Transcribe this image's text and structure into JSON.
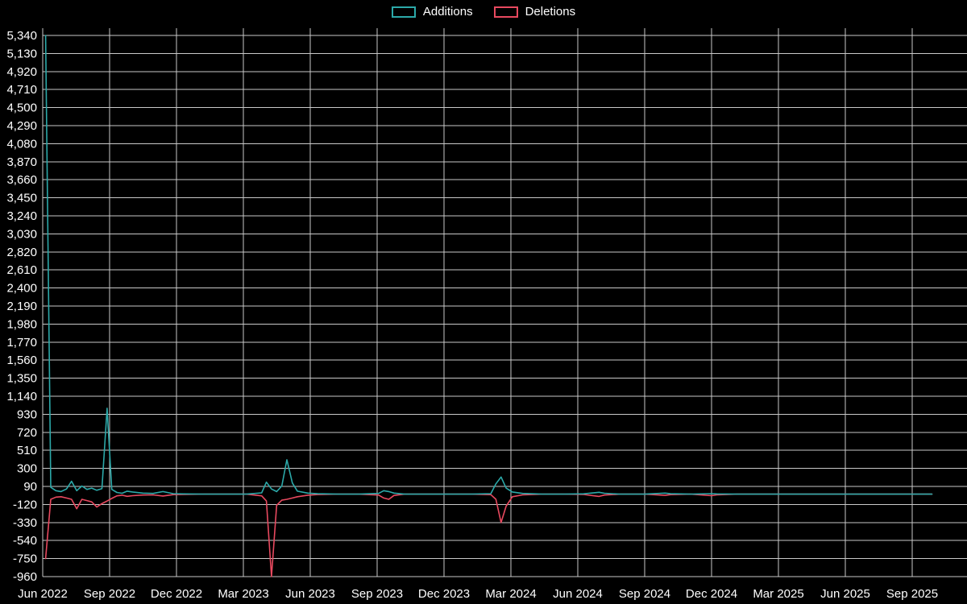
{
  "colors": {
    "background": "#000000",
    "grid": "#c9c9c9",
    "text": "#ffffff",
    "additions": "#2ca9a9",
    "deletions": "#e8495f"
  },
  "legend": {
    "items": [
      {
        "label": "Additions",
        "key": "additions"
      },
      {
        "label": "Deletions",
        "key": "deletions"
      }
    ]
  },
  "chart_data": {
    "type": "line",
    "title": "",
    "xlabel": "",
    "ylabel": "",
    "legend_position": "top-center",
    "grid": true,
    "ylim": [
      -960,
      5340
    ],
    "x_range": [
      "2022-06-01",
      "2025-11-01"
    ],
    "yticks": {
      "values": [
        5340,
        5130,
        4920,
        4710,
        4500,
        4290,
        4080,
        3870,
        3660,
        3450,
        3240,
        3030,
        2820,
        2610,
        2400,
        2190,
        1980,
        1770,
        1560,
        1350,
        1140,
        930,
        720,
        510,
        300,
        90,
        -120,
        -330,
        -540,
        -750,
        -960
      ],
      "labels": [
        "5,340",
        "5,130",
        "4,920",
        "4,710",
        "4,500",
        "4,290",
        "4,080",
        "3,870",
        "3,660",
        "3,450",
        "3,240",
        "3,030",
        "2,820",
        "2,610",
        "2,400",
        "2,190",
        "1,980",
        "1,770",
        "1,560",
        "1,350",
        "1,140",
        "930",
        "720",
        "510",
        "300",
        "90",
        "-120",
        "-330",
        "-540",
        "-750",
        "-960"
      ]
    },
    "xticks": {
      "labels": [
        "Jun 2022",
        "Sep 2022",
        "Dec 2022",
        "Mar 2023",
        "Jun 2023",
        "Sep 2023",
        "Dec 2023",
        "Mar 2024",
        "Jun 2024",
        "Sep 2024",
        "Dec 2024",
        "Mar 2025",
        "Jun 2025",
        "Sep 2025"
      ],
      "months_offset": [
        0,
        3,
        6,
        9,
        12,
        15,
        18,
        21,
        24,
        27,
        30,
        33,
        36,
        39
      ]
    },
    "series_names": [
      "Additions",
      "Deletions"
    ],
    "points": [
      [
        "2022-06-05",
        5340,
        -750
      ],
      [
        "2022-06-12",
        80,
        -60
      ],
      [
        "2022-06-19",
        40,
        -35
      ],
      [
        "2022-06-26",
        30,
        -30
      ],
      [
        "2022-07-03",
        60,
        -45
      ],
      [
        "2022-07-10",
        150,
        -60
      ],
      [
        "2022-07-17",
        40,
        -170
      ],
      [
        "2022-07-24",
        95,
        -60
      ],
      [
        "2022-07-31",
        55,
        -75
      ],
      [
        "2022-08-07",
        70,
        -90
      ],
      [
        "2022-08-14",
        45,
        -150
      ],
      [
        "2022-08-21",
        65,
        -110
      ],
      [
        "2022-08-28",
        1000,
        -80
      ],
      [
        "2022-09-04",
        55,
        -50
      ],
      [
        "2022-09-11",
        20,
        -20
      ],
      [
        "2022-09-18",
        10,
        -12
      ],
      [
        "2022-09-25",
        35,
        -25
      ],
      [
        "2022-10-02",
        25,
        -18
      ],
      [
        "2022-10-16",
        12,
        -10
      ],
      [
        "2022-10-30",
        8,
        -8
      ],
      [
        "2022-11-13",
        30,
        -22
      ],
      [
        "2022-11-27",
        6,
        -6
      ],
      [
        "2022-12-11",
        3,
        -3
      ],
      [
        "2023-01-08",
        0,
        0
      ],
      [
        "2023-02-05",
        0,
        0
      ],
      [
        "2023-03-05",
        0,
        0
      ],
      [
        "2023-03-26",
        15,
        -20
      ],
      [
        "2023-04-02",
        140,
        -80
      ],
      [
        "2023-04-09",
        60,
        -960
      ],
      [
        "2023-04-16",
        30,
        -130
      ],
      [
        "2023-04-23",
        95,
        -70
      ],
      [
        "2023-04-30",
        400,
        -60
      ],
      [
        "2023-05-07",
        130,
        -45
      ],
      [
        "2023-05-14",
        35,
        -30
      ],
      [
        "2023-05-28",
        12,
        -12
      ],
      [
        "2023-06-11",
        5,
        -5
      ],
      [
        "2023-07-09",
        0,
        0
      ],
      [
        "2023-08-06",
        0,
        0
      ],
      [
        "2023-09-03",
        8,
        -10
      ],
      [
        "2023-09-10",
        40,
        -45
      ],
      [
        "2023-09-17",
        30,
        -60
      ],
      [
        "2023-09-24",
        12,
        -15
      ],
      [
        "2023-10-08",
        0,
        0
      ],
      [
        "2023-11-05",
        0,
        0
      ],
      [
        "2023-12-03",
        0,
        0
      ],
      [
        "2024-01-07",
        0,
        0
      ],
      [
        "2024-02-04",
        6,
        -6
      ],
      [
        "2024-02-11",
        120,
        -60
      ],
      [
        "2024-02-18",
        200,
        -330
      ],
      [
        "2024-02-25",
        70,
        -140
      ],
      [
        "2024-03-03",
        25,
        -30
      ],
      [
        "2024-03-17",
        8,
        -8
      ],
      [
        "2024-04-14",
        0,
        0
      ],
      [
        "2024-05-12",
        0,
        0
      ],
      [
        "2024-06-09",
        4,
        -4
      ],
      [
        "2024-06-30",
        22,
        -26
      ],
      [
        "2024-07-07",
        10,
        -10
      ],
      [
        "2024-07-28",
        0,
        0
      ],
      [
        "2024-09-01",
        0,
        0
      ],
      [
        "2024-09-29",
        12,
        -14
      ],
      [
        "2024-10-06",
        5,
        -6
      ],
      [
        "2024-11-03",
        0,
        0
      ],
      [
        "2024-12-01",
        6,
        -18
      ],
      [
        "2024-12-08",
        3,
        -8
      ],
      [
        "2025-01-05",
        0,
        0
      ],
      [
        "2025-02-02",
        0,
        0
      ],
      [
        "2025-03-02",
        0,
        0
      ],
      [
        "2025-04-06",
        0,
        0
      ],
      [
        "2025-05-04",
        0,
        0
      ],
      [
        "2025-06-01",
        0,
        0
      ],
      [
        "2025-07-06",
        0,
        0
      ],
      [
        "2025-08-03",
        0,
        0
      ],
      [
        "2025-09-07",
        0,
        0
      ],
      [
        "2025-09-28",
        0,
        0
      ]
    ]
  }
}
